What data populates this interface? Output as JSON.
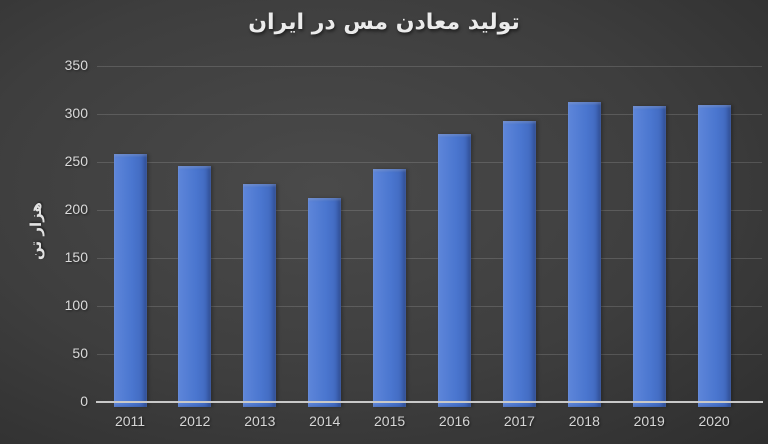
{
  "title": "تولید معادن مس در ایران",
  "chart_data": {
    "type": "bar",
    "title": "تولید معادن مس در ایران",
    "subtitle": "",
    "categories": [
      "2011",
      "2012",
      "2013",
      "2014",
      "2015",
      "2016",
      "2017",
      "2018",
      "2019",
      "2020"
    ],
    "values": [
      258,
      246,
      227,
      212,
      243,
      279,
      293,
      312,
      308,
      309
    ],
    "xlabel": "",
    "ylabel": "هزار تن",
    "ylim": [
      0,
      350
    ],
    "yticks": [
      0,
      50,
      100,
      150,
      200,
      250,
      300,
      350
    ],
    "grid": true,
    "legend": false,
    "colors": {
      "bar": "#4A76CF",
      "bar_light_edge": "#5E86DA",
      "bar_dark_edge": "#3E65BA",
      "background": "#3E3E3E",
      "title_text": "#EBEBEB",
      "tick_text": "#D6D6D6",
      "gridline": "rgba(255,255,255,0.14)",
      "axis_line": "#C9C9C9"
    }
  }
}
